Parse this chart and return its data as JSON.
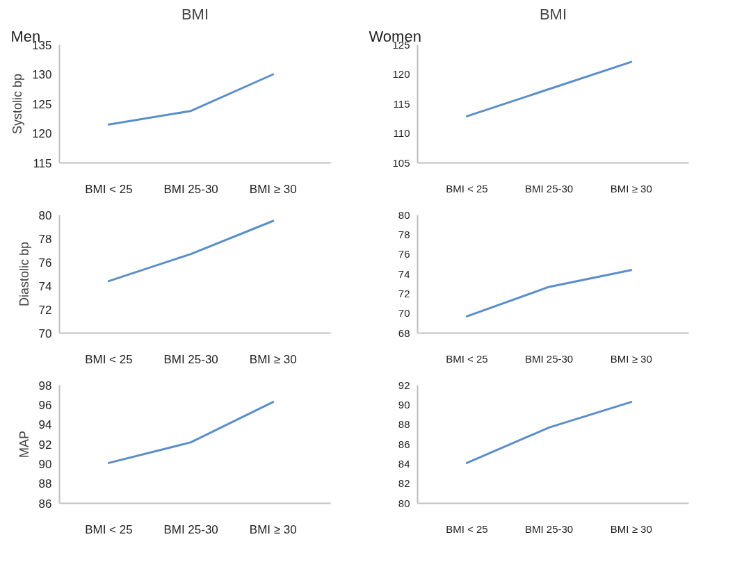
{
  "chart_data": [
    {
      "type": "line",
      "title": "BMI",
      "annotations": [
        "Men"
      ],
      "ylabel": "Systolic bp",
      "categories": [
        "BMI < 25",
        "BMI 25-30",
        "BMI ≥ 30"
      ],
      "values": [
        121.5,
        123.8,
        130
      ],
      "color": "#5b8ec8",
      "ylim": [
        115,
        135
      ],
      "yticks": [
        115,
        120,
        125,
        130,
        135
      ],
      "grid": false,
      "marker": "none"
    },
    {
      "type": "line",
      "title": "BMI",
      "annotations": [
        "Women"
      ],
      "categories": [
        "BMI < 25",
        "BMI 25-30",
        "BMI ≥ 30"
      ],
      "values": [
        112.9,
        117.5,
        122.1
      ],
      "color": "#5b8ec8",
      "ylim": [
        105,
        125
      ],
      "yticks": [
        105,
        110,
        115,
        120,
        125
      ],
      "grid": false,
      "marker": "none"
    },
    {
      "type": "line",
      "ylabel": "Diastolic bp",
      "categories": [
        "BMI < 25",
        "BMI 25-30",
        "BMI ≥ 30"
      ],
      "values": [
        74.4,
        76.7,
        79.5
      ],
      "color": "#5b8ec8",
      "ylim": [
        70,
        80
      ],
      "yticks": [
        70,
        72,
        74,
        76,
        78,
        80
      ],
      "grid": false,
      "marker": "none"
    },
    {
      "type": "line",
      "categories": [
        "BMI < 25",
        "BMI 25-30",
        "BMI ≥ 30"
      ],
      "values": [
        69.7,
        72.7,
        74.4
      ],
      "color": "#5b8ec8",
      "ylim": [
        68,
        80
      ],
      "yticks": [
        68,
        70,
        72,
        74,
        76,
        78,
        80
      ],
      "grid": false,
      "marker": "none"
    },
    {
      "type": "line",
      "ylabel": "MAP",
      "categories": [
        "BMI < 25",
        "BMI 25-30",
        "BMI ≥ 30"
      ],
      "values": [
        90.1,
        92.2,
        96.3
      ],
      "color": "#5b8ec8",
      "ylim": [
        86,
        98
      ],
      "yticks": [
        86,
        88,
        90,
        92,
        94,
        96,
        98
      ],
      "grid": false,
      "marker": "none"
    },
    {
      "type": "line",
      "categories": [
        "BMI < 25",
        "BMI 25-30",
        "BMI ≥ 30"
      ],
      "values": [
        84.1,
        87.7,
        90.3
      ],
      "color": "#5b8ec8",
      "ylim": [
        80,
        92
      ],
      "yticks": [
        80,
        82,
        84,
        86,
        88,
        90,
        92
      ],
      "grid": false,
      "marker": "none"
    }
  ]
}
